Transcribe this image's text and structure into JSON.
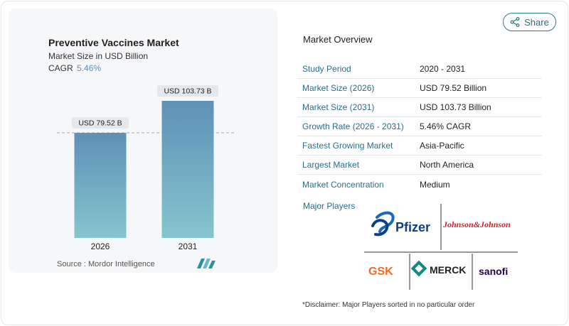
{
  "chart": {
    "title": "Preventive Vaccines Market",
    "subtitle": "Market Size in USD Billion",
    "cagr_label": "CAGR",
    "cagr_value": "5.46%",
    "source": "Source :  Mordor Intelligence"
  },
  "chart_data": {
    "type": "bar",
    "categories": [
      "2026",
      "2031"
    ],
    "values": [
      79.52,
      103.73
    ],
    "data_labels": [
      "USD 79.52 B",
      "USD 103.73 B"
    ],
    "title": "Preventive Vaccines Market",
    "subtitle": "Market Size in USD Billion",
    "xlabel": "",
    "ylabel": "",
    "ylim": [
      0,
      110
    ],
    "grid": false,
    "reference_line_value": 79.52,
    "colors": {
      "bar_top": "#5f90b6",
      "bar_bottom": "#86c5ce"
    }
  },
  "share": {
    "label": "Share",
    "icon": "share-icon"
  },
  "overview": {
    "title": "Market Overview",
    "rows": [
      {
        "label": "Study Period",
        "value": "2020 - 2031"
      },
      {
        "label": "Market Size (2026)",
        "value": "USD 79.52 Billion"
      },
      {
        "label": "Market Size (2031)",
        "value": "USD 103.73 Billion"
      },
      {
        "label": "Growth Rate (2026 - 2031)",
        "value": "5.46% CAGR"
      },
      {
        "label": "Fastest Growing Market",
        "value": "Asia-Pacific"
      },
      {
        "label": "Largest Market",
        "value": "North America"
      },
      {
        "label": "Market Concentration",
        "value": "Medium"
      }
    ]
  },
  "players": {
    "label": "Major Players",
    "logos": [
      "Pfizer",
      "Johnson&Johnson",
      "GSK",
      "MERCK",
      "sanofi"
    ],
    "disclaimer": "*Disclaimer: Major Players sorted in no particular order"
  },
  "accent_colors": {
    "label_teal": "#2a6e89",
    "share_border": "#2c7f86"
  }
}
